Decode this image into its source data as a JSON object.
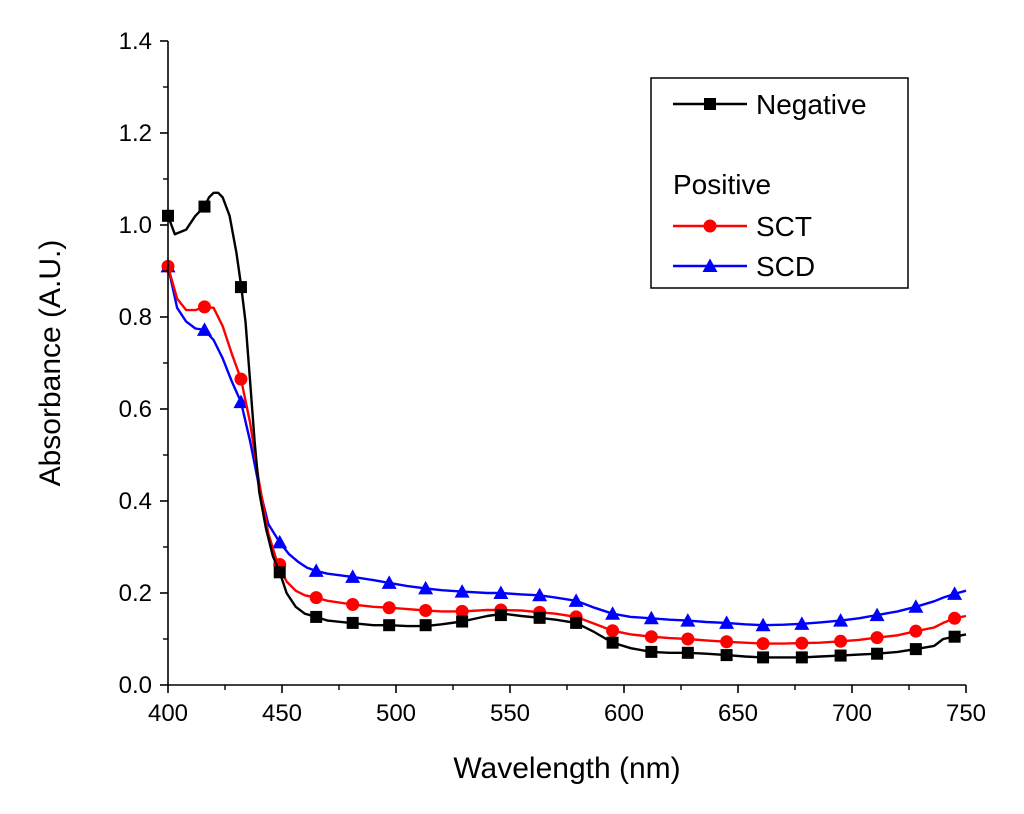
{
  "chart_data": {
    "type": "line",
    "xlabel": "Wavelength (nm)",
    "ylabel": "Absorbance (A.U.)",
    "xlim": [
      400,
      750
    ],
    "ylim": [
      0.0,
      1.4
    ],
    "xticks": [
      "400",
      "450",
      "500",
      "550",
      "600",
      "650",
      "700",
      "750"
    ],
    "yticks": [
      "0.0",
      "0.2",
      "0.4",
      "0.6",
      "0.8",
      "1.0",
      "1.2",
      "1.4"
    ],
    "legend": {
      "placement": "top-right",
      "group_heading": "Positive"
    },
    "series": [
      {
        "name": "Negative",
        "color": "#000000",
        "marker": "square",
        "x": [
          400,
          403,
          408,
          412,
          416,
          418,
          420,
          422,
          424,
          427,
          430,
          432,
          434,
          436,
          438,
          440,
          443,
          446,
          449,
          452,
          456,
          460,
          465,
          470,
          480,
          490,
          497,
          505,
          513,
          520,
          529,
          540,
          547,
          555,
          563,
          570,
          579,
          587,
          595,
          603,
          612,
          620,
          628,
          636,
          645,
          653,
          661,
          670,
          678,
          686,
          695,
          703,
          711,
          720,
          728,
          736,
          740,
          745,
          750
        ],
        "y": [
          1.02,
          0.98,
          0.99,
          1.02,
          1.04,
          1.06,
          1.07,
          1.07,
          1.06,
          1.02,
          0.94,
          0.87,
          0.79,
          0.66,
          0.53,
          0.42,
          0.34,
          0.28,
          0.245,
          0.2,
          0.17,
          0.155,
          0.148,
          0.14,
          0.135,
          0.13,
          0.13,
          0.128,
          0.128,
          0.132,
          0.138,
          0.15,
          0.155,
          0.15,
          0.146,
          0.142,
          0.135,
          0.115,
          0.092,
          0.08,
          0.072,
          0.07,
          0.07,
          0.068,
          0.065,
          0.062,
          0.06,
          0.06,
          0.06,
          0.062,
          0.064,
          0.066,
          0.068,
          0.072,
          0.078,
          0.085,
          0.1,
          0.105,
          0.11
        ],
        "markers_x": [
          400,
          416,
          432,
          449,
          465,
          481,
          497,
          513,
          529,
          546,
          563,
          579,
          595,
          612,
          628,
          645,
          661,
          678,
          695,
          711,
          728,
          745
        ],
        "markers_y": [
          1.02,
          1.04,
          0.865,
          0.245,
          0.148,
          0.135,
          0.13,
          0.13,
          0.138,
          0.152,
          0.146,
          0.135,
          0.092,
          0.072,
          0.07,
          0.065,
          0.06,
          0.06,
          0.064,
          0.068,
          0.078,
          0.105
        ]
      },
      {
        "name": "SCT",
        "color": "#ff0000",
        "marker": "circle",
        "x": [
          400,
          404,
          408,
          412,
          416,
          420,
          424,
          428,
          432,
          436,
          440,
          444,
          448,
          452,
          456,
          460,
          465,
          470,
          481,
          490,
          497,
          505,
          513,
          520,
          529,
          540,
          546,
          555,
          563,
          570,
          579,
          587,
          595,
          603,
          612,
          620,
          628,
          636,
          645,
          653,
          661,
          670,
          678,
          686,
          695,
          703,
          711,
          720,
          728,
          736,
          740,
          745,
          750
        ],
        "y": [
          0.91,
          0.84,
          0.815,
          0.815,
          0.822,
          0.82,
          0.78,
          0.72,
          0.665,
          0.57,
          0.44,
          0.33,
          0.265,
          0.225,
          0.205,
          0.195,
          0.19,
          0.183,
          0.175,
          0.17,
          0.168,
          0.165,
          0.162,
          0.16,
          0.16,
          0.163,
          0.163,
          0.162,
          0.158,
          0.155,
          0.148,
          0.133,
          0.118,
          0.11,
          0.105,
          0.102,
          0.1,
          0.097,
          0.094,
          0.092,
          0.09,
          0.09,
          0.091,
          0.092,
          0.095,
          0.098,
          0.103,
          0.108,
          0.117,
          0.125,
          0.135,
          0.145,
          0.15
        ],
        "markers_x": [
          400,
          416,
          432,
          449,
          465,
          481,
          497,
          513,
          529,
          546,
          563,
          579,
          595,
          612,
          628,
          645,
          661,
          678,
          695,
          711,
          728,
          745
        ],
        "markers_y": [
          0.91,
          0.822,
          0.665,
          0.262,
          0.19,
          0.175,
          0.168,
          0.162,
          0.16,
          0.163,
          0.158,
          0.148,
          0.118,
          0.105,
          0.1,
          0.094,
          0.09,
          0.091,
          0.095,
          0.103,
          0.117,
          0.145
        ]
      },
      {
        "name": "SCD",
        "color": "#0000ff",
        "marker": "triangle",
        "x": [
          400,
          404,
          408,
          412,
          416,
          420,
          424,
          428,
          432,
          436,
          440,
          444,
          449,
          453,
          457,
          461,
          465,
          470,
          481,
          490,
          497,
          505,
          513,
          520,
          529,
          540,
          546,
          555,
          563,
          570,
          579,
          587,
          595,
          603,
          612,
          620,
          628,
          636,
          645,
          653,
          661,
          670,
          678,
          686,
          695,
          703,
          711,
          720,
          728,
          736,
          740,
          745,
          750
        ],
        "y": [
          0.91,
          0.82,
          0.79,
          0.775,
          0.772,
          0.75,
          0.71,
          0.66,
          0.615,
          0.53,
          0.43,
          0.35,
          0.31,
          0.285,
          0.268,
          0.255,
          0.248,
          0.242,
          0.235,
          0.228,
          0.222,
          0.215,
          0.21,
          0.206,
          0.203,
          0.2,
          0.2,
          0.197,
          0.195,
          0.19,
          0.183,
          0.168,
          0.155,
          0.148,
          0.145,
          0.142,
          0.14,
          0.137,
          0.135,
          0.132,
          0.13,
          0.131,
          0.133,
          0.136,
          0.14,
          0.145,
          0.152,
          0.16,
          0.17,
          0.182,
          0.19,
          0.198,
          0.205
        ],
        "markers_x": [
          400,
          416,
          432,
          449,
          465,
          481,
          497,
          513,
          529,
          546,
          563,
          579,
          595,
          612,
          628,
          645,
          661,
          678,
          695,
          711,
          728,
          745
        ],
        "markers_y": [
          0.91,
          0.772,
          0.615,
          0.31,
          0.248,
          0.235,
          0.222,
          0.21,
          0.203,
          0.2,
          0.195,
          0.183,
          0.155,
          0.145,
          0.14,
          0.135,
          0.13,
          0.133,
          0.14,
          0.152,
          0.17,
          0.198
        ]
      }
    ]
  }
}
